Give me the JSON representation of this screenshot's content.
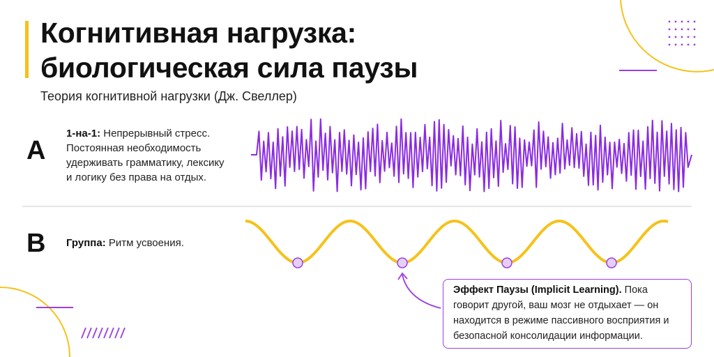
{
  "header": {
    "title_line1": "Когнитивная нагрузка:",
    "title_line2": "биологическая сила паузы",
    "subtitle": "Теория когнитивной нагрузки (Дж. Свеллер)"
  },
  "sections": [
    {
      "letter": "A",
      "lead": "1-на-1:",
      "text": "Непрерывный стресс. Постоянная необходимость удерживать грамматику, лексику и логику без права на отдых."
    },
    {
      "letter": "B",
      "lead": "Группа:",
      "text": "Ритм усвоения."
    }
  ],
  "callout": {
    "lead": "Эффект Паузы (Implicit Learning).",
    "text": "Пока говорит другой, ваш мозг не отдыхает — он находится в режиме пассивного восприятия и безопасной консолидации информации."
  }
}
